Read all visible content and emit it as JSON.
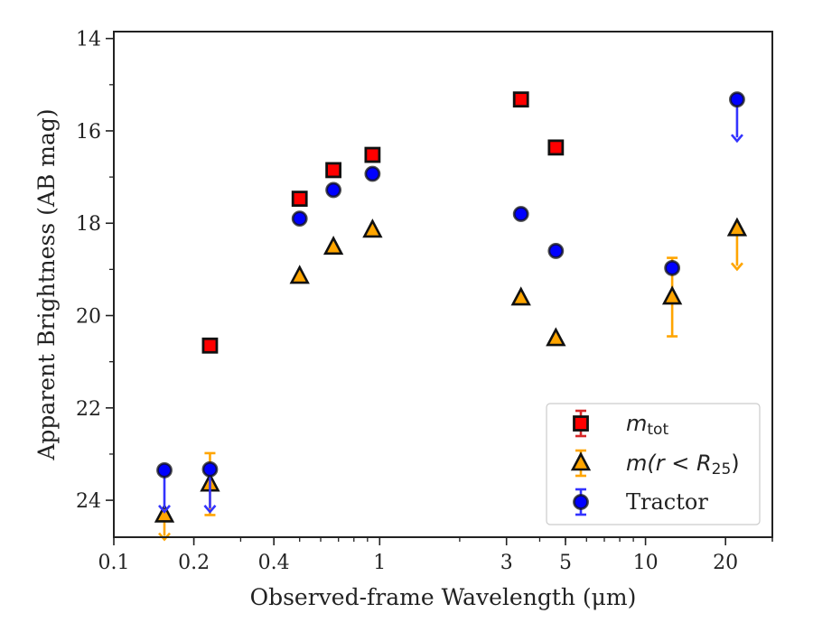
{
  "chart_data": {
    "type": "scatter",
    "xlabel": "Observed-frame Wavelength (μm)",
    "ylabel": "Apparent Brightness (AB mag)",
    "x_scale": "log",
    "y_inverted": true,
    "xlim": [
      0.1,
      30
    ],
    "ylim": [
      24.8,
      13.85
    ],
    "x_ticks": [
      0.1,
      0.2,
      0.4,
      1,
      3,
      5,
      10,
      20
    ],
    "x_tick_labels": [
      "0.1",
      "0.2",
      "0.4",
      "1",
      "3",
      "5",
      "10",
      "20"
    ],
    "y_ticks": [
      14,
      16,
      18,
      20,
      22,
      24
    ],
    "y_tick_labels": [
      "14",
      "16",
      "18",
      "20",
      "22",
      "24"
    ],
    "grid": false,
    "legend_placement": "lower-right",
    "series": [
      {
        "name": "m_tot",
        "legend": {
          "base": "m",
          "sub": "tot"
        },
        "marker": "square",
        "color": "#ff0000",
        "errcolor": "#d62728",
        "points": [
          {
            "x": 0.23,
            "y": 20.65
          },
          {
            "x": 0.5,
            "y": 17.47
          },
          {
            "x": 0.67,
            "y": 16.85
          },
          {
            "x": 0.94,
            "y": 16.52
          },
          {
            "x": 3.4,
            "y": 15.32
          },
          {
            "x": 4.6,
            "y": 16.36
          }
        ]
      },
      {
        "name": "m(r < R25)",
        "legend": {
          "base": "m(r < R",
          "sub": "25",
          "close": ")"
        },
        "marker": "triangle",
        "color": "#ffa500",
        "errcolor": "#ffa500",
        "points": [
          {
            "x": 0.155,
            "y": 24.32,
            "upper_limit": true,
            "arrow_to": 24.85
          },
          {
            "x": 0.23,
            "y": 23.65,
            "err_low": 22.98,
            "err_high": 24.32
          },
          {
            "x": 0.5,
            "y": 19.15
          },
          {
            "x": 0.67,
            "y": 18.52
          },
          {
            "x": 0.94,
            "y": 18.15
          },
          {
            "x": 3.4,
            "y": 19.62
          },
          {
            "x": 4.6,
            "y": 20.5
          },
          {
            "x": 12.6,
            "y": 19.6,
            "err_low": 18.75,
            "err_high": 20.45
          },
          {
            "x": 22.1,
            "y": 18.12,
            "upper_limit": true,
            "arrow_to": 19.0
          }
        ]
      },
      {
        "name": "Tractor",
        "legend": {
          "base": "Tractor"
        },
        "marker": "circle",
        "color": "#0000ff",
        "errcolor": "#3333ff",
        "points": [
          {
            "x": 0.155,
            "y": 23.35,
            "upper_limit": true,
            "arrow_to": 24.25
          },
          {
            "x": 0.23,
            "y": 23.33,
            "upper_limit": true,
            "arrow_to": 24.25
          },
          {
            "x": 0.5,
            "y": 17.9
          },
          {
            "x": 0.67,
            "y": 17.28
          },
          {
            "x": 0.94,
            "y": 16.93
          },
          {
            "x": 3.4,
            "y": 17.8
          },
          {
            "x": 4.6,
            "y": 18.6
          },
          {
            "x": 12.6,
            "y": 18.97
          },
          {
            "x": 22.1,
            "y": 15.32,
            "upper_limit": true,
            "arrow_to": 16.22
          }
        ]
      }
    ]
  }
}
